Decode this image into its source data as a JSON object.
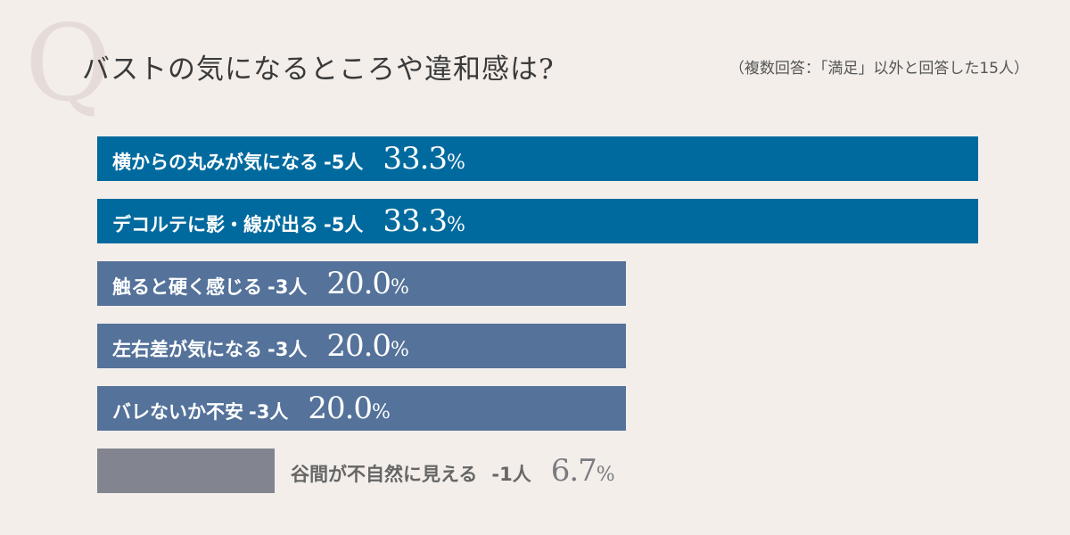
{
  "header": {
    "q_mark": "Q",
    "title": "バストの気になるところや違和感は?",
    "note": "（複数回答：「満足」以外と回答した15人）"
  },
  "colors": {
    "background": "#f3eeea",
    "bar_high": "#006a9e",
    "bar_mid": "#54729a",
    "bar_low": "#828590"
  },
  "chart_data": {
    "type": "bar",
    "orientation": "horizontal",
    "title": "バストの気になるところや違和感は?",
    "xlim": [
      0,
      33.3
    ],
    "categories": [
      "横からの丸みが気になる",
      "デコルテに影・線が出る",
      "触ると硬く感じる",
      "左右差が気になる",
      "バレないか不安",
      "谷間が不自然に見える"
    ],
    "counts": [
      5,
      5,
      3,
      3,
      3,
      1
    ],
    "values": [
      33.3,
      33.3,
      20.0,
      20.0,
      20.0,
      6.7
    ],
    "bars": [
      {
        "name": "横からの丸みが気になる",
        "count_label": "-5人",
        "value": 33.3,
        "pct_label": "33.3",
        "unit": "%",
        "color": "#006a9e"
      },
      {
        "name": "デコルテに影・線が出る",
        "count_label": "-5人",
        "value": 33.3,
        "pct_label": "33.3",
        "unit": "%",
        "color": "#006a9e"
      },
      {
        "name": "触ると硬く感じる",
        "count_label": "-3人",
        "value": 20.0,
        "pct_label": "20.0",
        "unit": "%",
        "color": "#54729a"
      },
      {
        "name": "左右差が気になる",
        "count_label": "-3人",
        "value": 20.0,
        "pct_label": "20.0",
        "unit": "%",
        "color": "#54729a"
      },
      {
        "name": "バレないか不安",
        "count_label": "-3人",
        "value": 20.0,
        "pct_label": "20.0",
        "unit": "%",
        "color": "#54729a"
      },
      {
        "name": "谷間が不自然に見える",
        "count_label": "-1人",
        "value": 6.7,
        "pct_label": "6.7",
        "unit": "%",
        "color": "#828590"
      }
    ]
  }
}
